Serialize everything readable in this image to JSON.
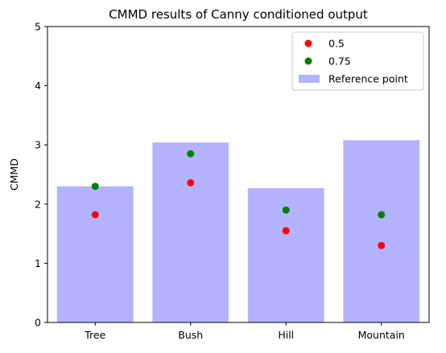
{
  "chart_data": {
    "type": "bar",
    "title": "CMMD results of Canny conditioned output",
    "xlabel": "",
    "ylabel": "CMMD",
    "categories": [
      "Tree",
      "Bush",
      "Hill",
      "Mountain"
    ],
    "ylim": [
      0,
      5
    ],
    "yticks": [
      "0",
      "1",
      "2",
      "3",
      "4",
      "5"
    ],
    "bar_series": {
      "name": "Reference point",
      "values": [
        2.3,
        3.04,
        2.27,
        3.08
      ],
      "color": "#b3b3ff"
    },
    "point_series": [
      {
        "name": "0.5",
        "values": [
          1.82,
          2.36,
          1.55,
          1.3
        ],
        "color": "#ff0000"
      },
      {
        "name": "0.75",
        "values": [
          2.3,
          2.85,
          1.9,
          1.82
        ],
        "color": "#008000"
      }
    ],
    "legend_position": "top-right",
    "grid": false
  }
}
